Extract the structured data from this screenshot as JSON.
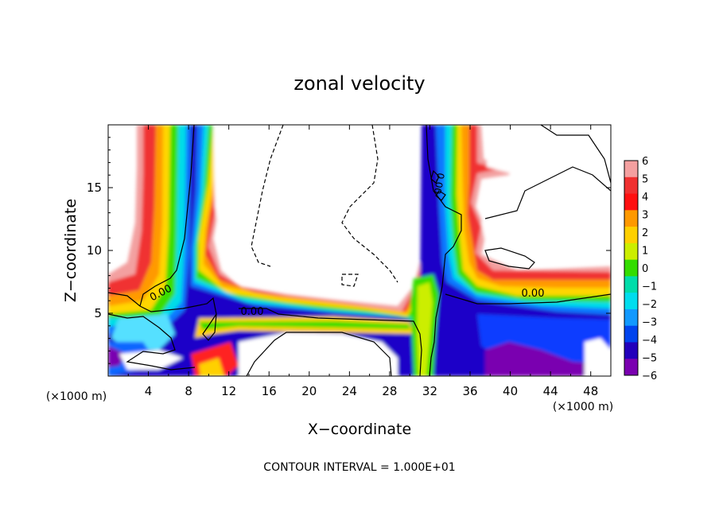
{
  "chart_data": {
    "type": "heatmap",
    "title": "zonal velocity",
    "xlabel": "X−coordinate",
    "ylabel": "Z−coordinate",
    "x_unit_left": "(×1000 m)",
    "x_unit_right": "(×1000 m)",
    "xlim": [
      0,
      50
    ],
    "ylim": [
      0,
      20
    ],
    "x_ticks": [
      4,
      8,
      12,
      16,
      20,
      24,
      28,
      32,
      36,
      40,
      44,
      48
    ],
    "y_ticks": [
      5,
      10,
      15
    ],
    "footer": "CONTOUR INTERVAL = 1.000E+01",
    "colorbar": {
      "levels": [
        6,
        5,
        4,
        3,
        2,
        1,
        0,
        -1,
        -2,
        -3,
        -4,
        -5,
        -6
      ],
      "labels": [
        "6",
        "5",
        "4",
        "3",
        "2",
        "1",
        "0",
        "−1",
        "−2",
        "−3",
        "−4",
        "−5",
        "−6"
      ],
      "colors": [
        "#f4a0a0",
        "#f03030",
        "#ff1010",
        "#ff9900",
        "#ffd000",
        "#ccee00",
        "#33dd00",
        "#00ddaa",
        "#00ddee",
        "#1199ff",
        "#0044ee",
        "#2200bb",
        "#7a00b0"
      ]
    },
    "contour_labels": [
      {
        "text": "0.00",
        "x": 5.5,
        "z": 6.6
      },
      {
        "text": "0.00",
        "x": 14.5,
        "z": 5.0
      },
      {
        "text": "0.00",
        "x": 42.0,
        "z": 6.5
      },
      {
        "text": "0.00",
        "x": 33.2,
        "z": 15.5
      }
    ],
    "features": [
      {
        "name": "left-column",
        "x_center": 5.5,
        "z_range": [
          0,
          20
        ],
        "values": "positive core, negative edge"
      },
      {
        "name": "central-column",
        "x_center": 31.5,
        "z_range": [
          0,
          20
        ],
        "values": "mixed"
      },
      {
        "name": "low-level-jet",
        "x_range": [
          0,
          50
        ],
        "z_center": 5,
        "values": "positive"
      }
    ]
  }
}
